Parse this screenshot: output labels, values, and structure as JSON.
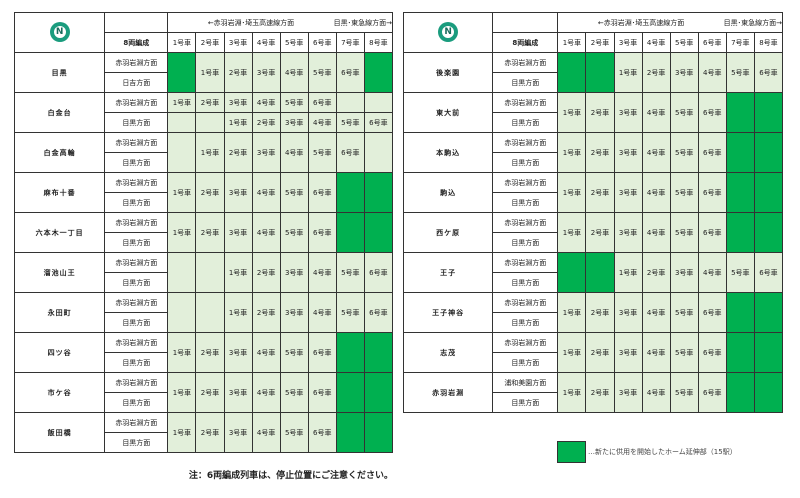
{
  "colors": {
    "new_extension": "#00b050",
    "platform": "#e2efda",
    "logo": "#1a9c7e"
  },
  "header": {
    "logo_letter": "N",
    "dir_left": "←赤羽岩淵･埼玉高速線方面",
    "dir_right": "目黒･東急線方面→",
    "formation": "8両編成",
    "cars": [
      "1号車",
      "2号車",
      "3号車",
      "4号車",
      "5号車",
      "6号車",
      "7号車",
      "8号車"
    ]
  },
  "left_table": [
    {
      "station": "目黒",
      "dir1": "赤羽岩淵方面",
      "dir2": "日吉方面",
      "solid": true,
      "cells": [
        "",
        "1号車",
        "2号車",
        "3号車",
        "4号車",
        "5号車",
        "6号車",
        ""
      ],
      "extended": [
        0,
        7
      ]
    },
    {
      "station": "白金台",
      "dir1": "赤羽岩淵方面",
      "dir2": "目黒方面",
      "split": true,
      "cells": [
        "1号車",
        "2号車",
        "3号車",
        "4号車",
        "5号車",
        "6号車",
        "",
        ""
      ],
      "cells2": [
        "",
        "",
        "1号車",
        "2号車",
        "3号車",
        "4号車",
        "5号車",
        "6号車"
      ],
      "extended": []
    },
    {
      "station": "白金高輪",
      "dir1": "赤羽岩淵方面",
      "dir2": "目黒方面",
      "cells": [
        "",
        "1号車",
        "2号車",
        "3号車",
        "4号車",
        "5号車",
        "6号車",
        ""
      ],
      "extended": []
    },
    {
      "station": "麻布十番",
      "dir1": "赤羽岩淵方面",
      "dir2": "目黒方面",
      "cells": [
        "1号車",
        "2号車",
        "3号車",
        "4号車",
        "5号車",
        "6号車",
        "",
        ""
      ],
      "extended": [
        6,
        7
      ]
    },
    {
      "station": "六本木一丁目",
      "dir1": "赤羽岩淵方面",
      "dir2": "目黒方面",
      "cells": [
        "1号車",
        "2号車",
        "3号車",
        "4号車",
        "5号車",
        "6号車",
        "",
        ""
      ],
      "extended": [
        6,
        7
      ]
    },
    {
      "station": "溜池山王",
      "dir1": "赤羽岩淵方面",
      "dir2": "目黒方面",
      "cells": [
        "",
        "",
        "1号車",
        "2号車",
        "3号車",
        "4号車",
        "5号車",
        "6号車"
      ],
      "extended": []
    },
    {
      "station": "永田町",
      "dir1": "赤羽岩淵方面",
      "dir2": "目黒方面",
      "cells": [
        "",
        "",
        "1号車",
        "2号車",
        "3号車",
        "4号車",
        "5号車",
        "6号車"
      ],
      "extended": []
    },
    {
      "station": "四ツ谷",
      "dir1": "赤羽岩淵方面",
      "dir2": "目黒方面",
      "cells": [
        "1号車",
        "2号車",
        "3号車",
        "4号車",
        "5号車",
        "6号車",
        "",
        ""
      ],
      "extended": [
        6,
        7
      ]
    },
    {
      "station": "市ケ谷",
      "dir1": "赤羽岩淵方面",
      "dir2": "目黒方面",
      "cells": [
        "1号車",
        "2号車",
        "3号車",
        "4号車",
        "5号車",
        "6号車",
        "",
        ""
      ],
      "extended": [
        6,
        7
      ]
    },
    {
      "station": "飯田橋",
      "dir1": "赤羽岩淵方面",
      "dir2": "目黒方面",
      "cells": [
        "1号車",
        "2号車",
        "3号車",
        "4号車",
        "5号車",
        "6号車",
        "",
        ""
      ],
      "extended": [
        6,
        7
      ]
    }
  ],
  "right_table": [
    {
      "station": "後楽園",
      "dir1": "赤羽岩淵方面",
      "dir2": "目黒方面",
      "solid": true,
      "cells": [
        "",
        "",
        "1号車",
        "2号車",
        "3号車",
        "4号車",
        "5号車",
        "6号車"
      ],
      "extended": [
        0,
        1
      ]
    },
    {
      "station": "東大前",
      "dir1": "赤羽岩淵方面",
      "dir2": "目黒方面",
      "cells": [
        "1号車",
        "2号車",
        "3号車",
        "4号車",
        "5号車",
        "6号車",
        "",
        ""
      ],
      "extended": [
        6,
        7
      ]
    },
    {
      "station": "本駒込",
      "dir1": "赤羽岩淵方面",
      "dir2": "目黒方面",
      "cells": [
        "1号車",
        "2号車",
        "3号車",
        "4号車",
        "5号車",
        "6号車",
        "",
        ""
      ],
      "extended": [
        6,
        7
      ]
    },
    {
      "station": "駒込",
      "dir1": "赤羽岩淵方面",
      "dir2": "目黒方面",
      "cells": [
        "1号車",
        "2号車",
        "3号車",
        "4号車",
        "5号車",
        "6号車",
        "",
        ""
      ],
      "extended": [
        6,
        7
      ]
    },
    {
      "station": "西ケ原",
      "dir1": "赤羽岩淵方面",
      "dir2": "目黒方面",
      "cells": [
        "1号車",
        "2号車",
        "3号車",
        "4号車",
        "5号車",
        "6号車",
        "",
        ""
      ],
      "extended": [
        6,
        7
      ]
    },
    {
      "station": "王子",
      "dir1": "赤羽岩淵方面",
      "dir2": "目黒方面",
      "cells": [
        "",
        "",
        "1号車",
        "2号車",
        "3号車",
        "4号車",
        "5号車",
        "6号車"
      ],
      "extended": [
        0,
        1
      ]
    },
    {
      "station": "王子神谷",
      "dir1": "赤羽岩淵方面",
      "dir2": "目黒方面",
      "cells": [
        "1号車",
        "2号車",
        "3号車",
        "4号車",
        "5号車",
        "6号車",
        "",
        ""
      ],
      "extended": [
        6,
        7
      ]
    },
    {
      "station": "志茂",
      "dir1": "赤羽岩淵方面",
      "dir2": "目黒方面",
      "cells": [
        "1号車",
        "2号車",
        "3号車",
        "4号車",
        "5号車",
        "6号車",
        "",
        ""
      ],
      "extended": [
        6,
        7
      ]
    },
    {
      "station": "赤羽岩淵",
      "dir1": "浦和美園方面",
      "dir2": "目黒方面",
      "cells": [
        "1号車",
        "2号車",
        "3号車",
        "4号車",
        "5号車",
        "6号車",
        "",
        ""
      ],
      "extended": [
        6,
        7
      ]
    }
  ],
  "legend": {
    "text": "…新たに供用を開始したホーム延伸部（15駅）"
  },
  "note": "注：6両編成列車は、停止位置にご注意ください。"
}
